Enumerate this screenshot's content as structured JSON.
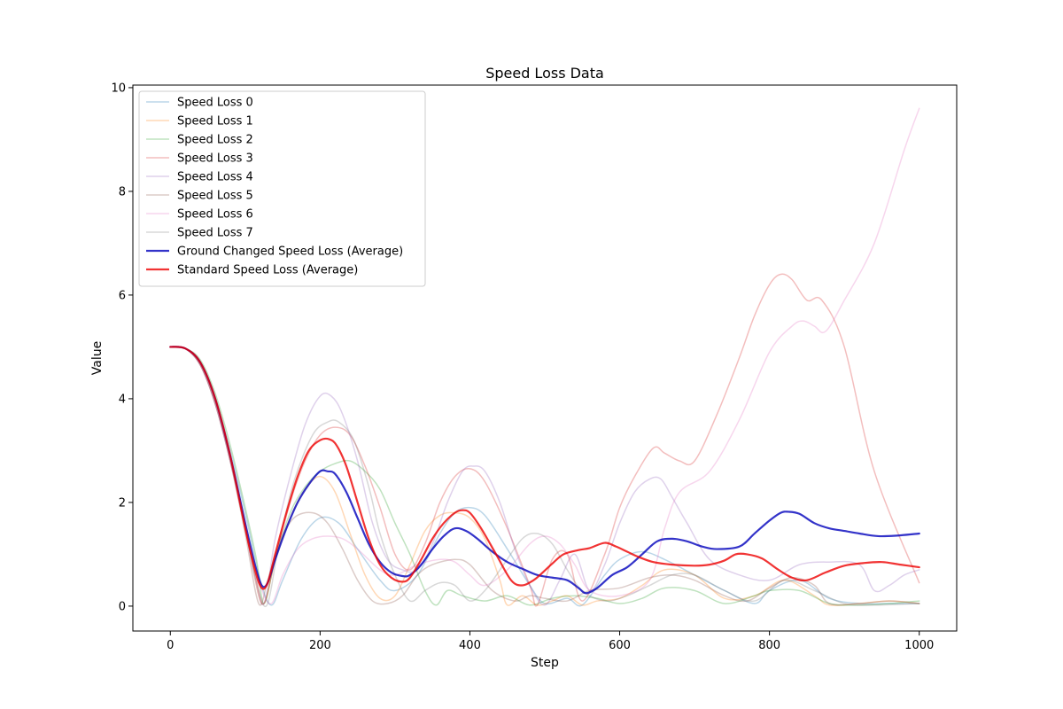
{
  "chart_data": {
    "type": "line",
    "title": "Speed Loss Data",
    "xlabel": "Step",
    "ylabel": "Value",
    "xlim": [
      -50,
      1050
    ],
    "ylim": [
      -0.48,
      10.05
    ],
    "xticks": [
      0,
      200,
      400,
      600,
      800,
      1000
    ],
    "yticks": [
      0,
      2,
      4,
      6,
      8,
      10
    ],
    "grid": false,
    "legend_position": "upper-left",
    "series": [
      {
        "name": "Speed Loss 0",
        "color": "#1f77b4",
        "opacity": 0.3,
        "width": 1.5,
        "x": [
          0,
          20,
          40,
          60,
          80,
          100,
          120,
          135,
          150,
          175,
          200,
          225,
          250,
          280,
          300,
          330,
          360,
          380,
          400,
          420,
          450,
          480,
          500,
          530,
          550,
          580,
          600,
          630,
          660,
          700,
          740,
          780,
          800,
          840,
          880,
          920,
          960,
          1000
        ],
        "y": [
          5.0,
          4.97,
          4.7,
          4.0,
          3.0,
          1.8,
          0.5,
          0.02,
          0.5,
          1.3,
          1.7,
          1.6,
          1.1,
          0.5,
          0.3,
          0.6,
          1.4,
          1.8,
          1.9,
          1.75,
          1.1,
          0.4,
          0.05,
          0.15,
          0.02,
          0.6,
          0.9,
          1.05,
          0.9,
          0.6,
          0.3,
          0.05,
          0.3,
          0.5,
          0.15,
          0.05,
          0.05,
          0.05
        ]
      },
      {
        "name": "Speed Loss 1",
        "color": "#ff7f0e",
        "opacity": 0.3,
        "width": 1.5,
        "x": [
          0,
          20,
          40,
          60,
          80,
          100,
          122,
          140,
          160,
          180,
          200,
          220,
          240,
          260,
          280,
          300,
          320,
          340,
          360,
          380,
          400,
          420,
          440,
          450,
          470,
          490,
          510,
          530,
          550,
          570,
          600,
          630,
          660,
          700,
          740,
          780,
          820,
          860,
          880,
          920,
          960,
          1000
        ],
        "y": [
          5.0,
          4.97,
          4.7,
          4.0,
          2.9,
          1.6,
          0.05,
          0.9,
          1.7,
          2.25,
          2.5,
          2.2,
          1.4,
          0.6,
          0.15,
          0.2,
          0.8,
          1.45,
          1.75,
          1.8,
          1.7,
          1.3,
          0.5,
          0.02,
          0.2,
          0.02,
          0.1,
          0.2,
          0.02,
          0.1,
          0.15,
          0.4,
          0.7,
          0.6,
          0.15,
          0.2,
          0.5,
          0.2,
          0.02,
          0.05,
          0.1,
          0.05
        ]
      },
      {
        "name": "Speed Loss 2",
        "color": "#2ca02c",
        "opacity": 0.3,
        "width": 1.5,
        "x": [
          0,
          20,
          40,
          60,
          80,
          100,
          115,
          125,
          140,
          160,
          180,
          200,
          220,
          240,
          260,
          280,
          300,
          320,
          340,
          355,
          370,
          390,
          420,
          450,
          480,
          510,
          540,
          570,
          600,
          630,
          660,
          700,
          740,
          780,
          800,
          840,
          880,
          920,
          960,
          1000
        ],
        "y": [
          5.0,
          4.97,
          4.75,
          4.1,
          3.1,
          1.9,
          0.9,
          0.05,
          0.9,
          1.8,
          2.3,
          2.6,
          2.75,
          2.8,
          2.6,
          2.25,
          1.6,
          1.0,
          0.3,
          0.02,
          0.3,
          0.2,
          0.1,
          0.2,
          0.02,
          0.15,
          0.2,
          0.15,
          0.05,
          0.15,
          0.35,
          0.3,
          0.05,
          0.2,
          0.3,
          0.3,
          0.05,
          0.02,
          0.05,
          0.1
        ]
      },
      {
        "name": "Speed Loss 3",
        "color": "#d62728",
        "opacity": 0.3,
        "width": 1.5,
        "x": [
          0,
          20,
          40,
          60,
          80,
          100,
          115,
          125,
          140,
          160,
          180,
          200,
          220,
          240,
          260,
          280,
          300,
          320,
          340,
          360,
          380,
          400,
          420,
          450,
          480,
          490,
          510,
          530,
          550,
          580,
          600,
          620,
          645,
          660,
          680,
          700,
          730,
          760,
          780,
          800,
          815,
          830,
          850,
          870,
          900,
          940,
          1000
        ],
        "y": [
          5.0,
          4.97,
          4.65,
          3.9,
          2.8,
          1.5,
          0.5,
          0.05,
          0.9,
          2.0,
          2.8,
          3.3,
          3.45,
          3.3,
          2.7,
          1.9,
          1.0,
          0.7,
          1.2,
          2.0,
          2.5,
          2.65,
          2.4,
          1.5,
          0.4,
          0.02,
          0.9,
          1.0,
          0.1,
          1.0,
          1.9,
          2.5,
          3.05,
          2.95,
          2.8,
          2.8,
          3.7,
          4.8,
          5.6,
          6.2,
          6.4,
          6.3,
          5.9,
          5.9,
          5.0,
          2.6,
          0.45
        ]
      },
      {
        "name": "Speed Loss 4",
        "color": "#9467bd",
        "opacity": 0.3,
        "width": 1.5,
        "x": [
          0,
          20,
          40,
          60,
          80,
          100,
          112,
          125,
          140,
          160,
          180,
          200,
          215,
          230,
          250,
          270,
          290,
          310,
          330,
          350,
          370,
          390,
          405,
          420,
          440,
          460,
          480,
          500,
          520,
          540,
          560,
          580,
          600,
          620,
          640,
          655,
          670,
          690,
          720,
          760,
          800,
          840,
          880,
          920,
          940,
          960,
          980,
          1000
        ],
        "y": [
          5.0,
          4.97,
          4.7,
          4.0,
          2.9,
          1.5,
          0.6,
          0.05,
          1.3,
          2.5,
          3.5,
          4.05,
          4.05,
          3.7,
          2.8,
          1.6,
          0.9,
          0.7,
          0.7,
          1.2,
          2.0,
          2.6,
          2.7,
          2.6,
          2.0,
          1.1,
          0.4,
          0.02,
          0.5,
          1.0,
          0.3,
          0.8,
          1.6,
          2.2,
          2.45,
          2.45,
          2.1,
          1.6,
          0.9,
          0.6,
          0.5,
          0.8,
          0.85,
          0.8,
          0.3,
          0.4,
          0.6,
          0.7
        ]
      },
      {
        "name": "Speed Loss 5",
        "color": "#8c564b",
        "opacity": 0.3,
        "width": 1.5,
        "x": [
          0,
          20,
          40,
          60,
          80,
          100,
          118,
          130,
          145,
          165,
          190,
          210,
          230,
          250,
          270,
          290,
          310,
          330,
          350,
          380,
          400,
          430,
          460,
          480,
          500,
          530,
          560,
          600,
          640,
          670,
          700,
          740,
          770,
          800,
          830,
          860,
          880,
          920,
          960,
          1000
        ],
        "y": [
          5.0,
          4.97,
          4.65,
          3.9,
          2.8,
          1.4,
          0.05,
          0.5,
          1.2,
          1.7,
          1.8,
          1.6,
          1.1,
          0.5,
          0.1,
          0.05,
          0.2,
          0.6,
          0.8,
          0.9,
          0.8,
          0.3,
          0.1,
          0.2,
          0.15,
          0.1,
          0.3,
          0.35,
          0.55,
          0.6,
          0.5,
          0.2,
          0.1,
          0.35,
          0.55,
          0.4,
          0.05,
          0.05,
          0.1,
          0.05
        ]
      },
      {
        "name": "Speed Loss 6",
        "color": "#e377c2",
        "opacity": 0.3,
        "width": 1.5,
        "x": [
          0,
          20,
          40,
          60,
          80,
          100,
          120,
          135,
          150,
          170,
          190,
          210,
          230,
          250,
          280,
          300,
          330,
          360,
          380,
          400,
          420,
          450,
          480,
          500,
          520,
          540,
          560,
          600,
          640,
          660,
          680,
          720,
          760,
          800,
          830,
          845,
          860,
          875,
          900,
          940,
          980,
          1000
        ],
        "y": [
          5.0,
          4.97,
          4.65,
          3.9,
          2.8,
          1.5,
          0.4,
          0.05,
          0.6,
          1.1,
          1.3,
          1.35,
          1.3,
          1.1,
          0.7,
          0.6,
          0.8,
          0.9,
          0.85,
          0.6,
          0.4,
          0.7,
          1.2,
          1.35,
          1.2,
          0.8,
          0.3,
          0.2,
          0.5,
          1.5,
          2.2,
          2.6,
          3.6,
          4.9,
          5.4,
          5.5,
          5.4,
          5.3,
          5.9,
          7.0,
          8.8,
          9.6
        ]
      },
      {
        "name": "Speed Loss 7",
        "color": "#7f7f7f",
        "opacity": 0.3,
        "width": 1.5,
        "x": [
          0,
          20,
          40,
          60,
          80,
          100,
          118,
          130,
          145,
          165,
          190,
          210,
          225,
          245,
          265,
          280,
          300,
          320,
          340,
          360,
          380,
          400,
          420,
          445,
          470,
          490,
          510,
          530,
          550,
          580,
          610,
          640,
          670,
          700,
          740,
          780,
          820,
          860,
          900,
          940,
          1000
        ],
        "y": [
          5.0,
          4.97,
          4.65,
          3.9,
          2.8,
          1.5,
          0.3,
          0.05,
          1.2,
          2.4,
          3.3,
          3.55,
          3.55,
          3.2,
          2.3,
          1.4,
          0.6,
          0.1,
          0.3,
          0.45,
          0.4,
          0.1,
          0.3,
          0.8,
          1.3,
          1.4,
          1.2,
          0.7,
          0.3,
          0.1,
          0.2,
          0.4,
          0.6,
          0.6,
          0.3,
          0.1,
          0.5,
          0.3,
          0.05,
          0.02,
          0.05
        ]
      },
      {
        "name": "Ground Changed Speed Loss (Average)",
        "color": "#0000bb",
        "opacity": 0.8,
        "width": 2.2,
        "x": [
          0,
          20,
          40,
          60,
          80,
          100,
          113,
          122,
          130,
          140,
          155,
          170,
          185,
          200,
          210,
          220,
          235,
          250,
          265,
          280,
          295,
          310,
          320,
          335,
          350,
          365,
          380,
          395,
          410,
          430,
          450,
          470,
          490,
          510,
          530,
          545,
          555,
          570,
          590,
          610,
          630,
          650,
          670,
          690,
          710,
          730,
          760,
          780,
          800,
          815,
          825,
          840,
          860,
          880,
          900,
          920,
          945,
          970,
          1000
        ],
        "y": [
          5.0,
          4.97,
          4.7,
          4.0,
          2.9,
          1.6,
          0.8,
          0.4,
          0.45,
          0.9,
          1.5,
          2.0,
          2.35,
          2.6,
          2.6,
          2.55,
          2.2,
          1.7,
          1.2,
          0.85,
          0.65,
          0.58,
          0.6,
          0.8,
          1.1,
          1.35,
          1.5,
          1.45,
          1.3,
          1.05,
          0.85,
          0.72,
          0.6,
          0.55,
          0.5,
          0.35,
          0.25,
          0.35,
          0.6,
          0.75,
          1.0,
          1.25,
          1.3,
          1.25,
          1.15,
          1.1,
          1.15,
          1.4,
          1.65,
          1.8,
          1.82,
          1.78,
          1.6,
          1.5,
          1.45,
          1.4,
          1.35,
          1.36,
          1.4
        ]
      },
      {
        "name": "Standard Speed Loss (Average)",
        "color": "#ee0000",
        "opacity": 0.8,
        "width": 2.2,
        "x": [
          0,
          20,
          40,
          60,
          80,
          100,
          113,
          122,
          130,
          140,
          155,
          170,
          185,
          200,
          212,
          222,
          235,
          250,
          265,
          280,
          295,
          310,
          320,
          335,
          350,
          365,
          380,
          390,
          400,
          415,
          435,
          455,
          470,
          485,
          495,
          510,
          525,
          545,
          560,
          580,
          595,
          610,
          625,
          645,
          670,
          700,
          720,
          740,
          755,
          770,
          790,
          810,
          830,
          850,
          875,
          900,
          925,
          950,
          975,
          1000
        ],
        "y": [
          5.0,
          4.97,
          4.7,
          4.0,
          2.9,
          1.5,
          0.7,
          0.35,
          0.45,
          1.0,
          1.8,
          2.5,
          3.0,
          3.2,
          3.22,
          3.1,
          2.7,
          2.0,
          1.3,
          0.8,
          0.55,
          0.47,
          0.55,
          0.9,
          1.3,
          1.6,
          1.8,
          1.85,
          1.8,
          1.5,
          1.0,
          0.5,
          0.4,
          0.5,
          0.62,
          0.82,
          1.0,
          1.08,
          1.12,
          1.22,
          1.15,
          1.05,
          0.95,
          0.85,
          0.8,
          0.78,
          0.8,
          0.88,
          1.0,
          1.0,
          0.92,
          0.72,
          0.55,
          0.5,
          0.65,
          0.78,
          0.83,
          0.85,
          0.8,
          0.75
        ]
      }
    ]
  }
}
